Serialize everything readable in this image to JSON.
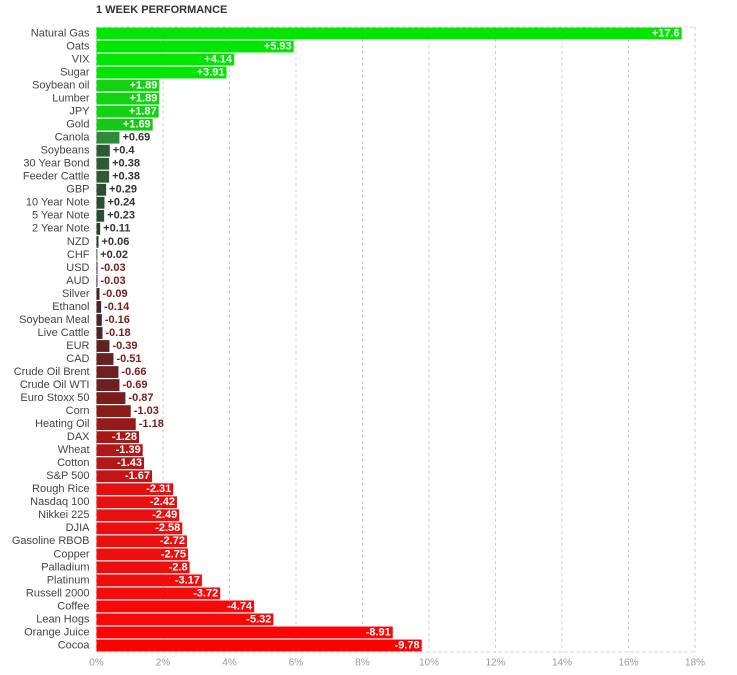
{
  "chart_data": {
    "type": "bar",
    "orientation": "horizontal",
    "title": "1 WEEK PERFORMANCE",
    "categories": [
      "Natural Gas",
      "Oats",
      "VIX",
      "Sugar",
      "Soybean oil",
      "Lumber",
      "JPY",
      "Gold",
      "Canola",
      "Soybeans",
      "30 Year Bond",
      "Feeder Cattle",
      "GBP",
      "10 Year Note",
      "5 Year Note",
      "2 Year Note",
      "NZD",
      "CHF",
      "USD",
      "AUD",
      "Silver",
      "Ethanol",
      "Soybean Meal",
      "Live Cattle",
      "EUR",
      "CAD",
      "Crude Oil Brent",
      "Crude Oil WTI",
      "Euro Stoxx 50",
      "Corn",
      "Heating Oil",
      "DAX",
      "Wheat",
      "Cotton",
      "S&P 500",
      "Rough Rice",
      "Nasdaq 100",
      "Nikkei 225",
      "DJIA",
      "Gasoline RBOB",
      "Copper",
      "Palladium",
      "Platinum",
      "Russell 2000",
      "Coffee",
      "Lean Hogs",
      "Orange Juice",
      "Cocoa"
    ],
    "values": [
      17.6,
      5.93,
      4.14,
      3.91,
      1.89,
      1.89,
      1.87,
      1.69,
      0.69,
      0.4,
      0.38,
      0.38,
      0.29,
      0.24,
      0.23,
      0.11,
      0.06,
      0.02,
      -0.03,
      -0.03,
      -0.09,
      -0.14,
      -0.16,
      -0.18,
      -0.39,
      -0.51,
      -0.66,
      -0.69,
      -0.87,
      -1.03,
      -1.18,
      -1.28,
      -1.39,
      -1.43,
      -1.67,
      -2.31,
      -2.42,
      -2.49,
      -2.58,
      -2.72,
      -2.75,
      -2.8,
      -3.17,
      -3.72,
      -4.74,
      -5.32,
      -8.91,
      -9.78
    ],
    "value_labels": [
      "+17.6",
      "+5.93",
      "+4.14",
      "+3.91",
      "+1.89",
      "+1.89",
      "+1.87",
      "+1.69",
      "+0.69",
      "+0.4",
      "+0.38",
      "+0.38",
      "+0.29",
      "+0.24",
      "+0.23",
      "+0.11",
      "+0.06",
      "+0.02",
      "-0.03",
      "-0.03",
      "-0.09",
      "-0.14",
      "-0.16",
      "-0.18",
      "-0.39",
      "-0.51",
      "-0.66",
      "-0.69",
      "-0.87",
      "-1.03",
      "-1.18",
      "-1.28",
      "-1.39",
      "-1.43",
      "-1.67",
      "-2.31",
      "-2.42",
      "-2.49",
      "-2.58",
      "-2.72",
      "-2.75",
      "-2.8",
      "-3.17",
      "-3.72",
      "-4.74",
      "-5.32",
      "-8.91",
      "-9.78"
    ],
    "colors": [
      "#00e600",
      "#00e600",
      "#00e600",
      "#00e600",
      "#12d312",
      "#12d312",
      "#12d312",
      "#16c916",
      "#2d8a3a",
      "#2e5a35",
      "#2e5a35",
      "#2e5a35",
      "#2d4d32",
      "#2d4d32",
      "#2d4d32",
      "#2b3d2f",
      "#2b3d2f",
      "#2b3d2f",
      "#3b2a2a",
      "#3b2a2a",
      "#432626",
      "#4a2525",
      "#4a2525",
      "#4a2525",
      "#5e2222",
      "#662121",
      "#6e1f1f",
      "#6e1f1f",
      "#7a1d1d",
      "#8a1b1b",
      "#961a1a",
      "#a81818",
      "#b01717",
      "#b31717",
      "#c21515",
      "#e41010",
      "#e61010",
      "#e81010",
      "#ea0f0f",
      "#ec0f0f",
      "#ee0e0e",
      "#ef0e0e",
      "#f20d0d",
      "#f50b0b",
      "#f80909",
      "#fa0808",
      "#fe0303",
      "#ff0000"
    ],
    "xlim": [
      0,
      18
    ],
    "xticks": [
      {
        "value": 0,
        "label": "0%"
      },
      {
        "value": 2,
        "label": "2%"
      },
      {
        "value": 4,
        "label": "4%"
      },
      {
        "value": 6,
        "label": "6%"
      },
      {
        "value": 8,
        "label": "8%"
      },
      {
        "value": 10,
        "label": "10%"
      },
      {
        "value": 12,
        "label": "12%"
      },
      {
        "value": 14,
        "label": "14%"
      },
      {
        "value": 16,
        "label": "16%"
      },
      {
        "value": 18,
        "label": "18%"
      }
    ],
    "grid": true
  }
}
